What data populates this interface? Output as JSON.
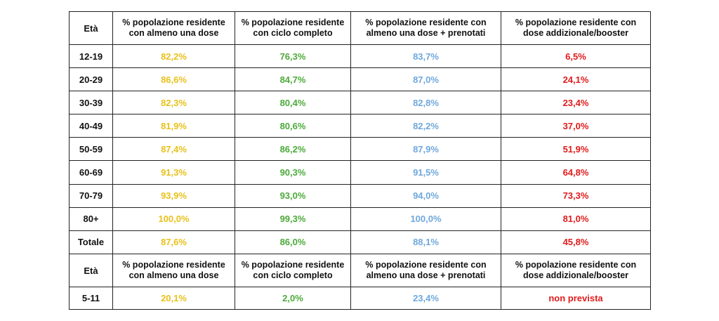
{
  "table_main": {
    "headers": [
      "Età",
      "% popolazione residente con almeno una dose",
      "% popolazione residente con ciclo completo",
      "% popolazione residente con almeno una dose + prenotati",
      "% popolazione residente con dose addizionale/booster"
    ],
    "rows": [
      {
        "age": "12-19",
        "values": [
          "82,2%",
          "76,3%",
          "83,7%",
          "6,5%"
        ]
      },
      {
        "age": "20-29",
        "values": [
          "86,6%",
          "84,7%",
          "87,0%",
          "24,1%"
        ]
      },
      {
        "age": "30-39",
        "values": [
          "82,3%",
          "80,4%",
          "82,8%",
          "23,4%"
        ]
      },
      {
        "age": "40-49",
        "values": [
          "81,9%",
          "80,6%",
          "82,2%",
          "37,0%"
        ]
      },
      {
        "age": "50-59",
        "values": [
          "87,4%",
          "86,2%",
          "87,9%",
          "51,9%"
        ]
      },
      {
        "age": "60-69",
        "values": [
          "91,3%",
          "90,3%",
          "91,5%",
          "64,8%"
        ]
      },
      {
        "age": "70-79",
        "values": [
          "93,9%",
          "93,0%",
          "94,0%",
          "73,3%"
        ]
      },
      {
        "age": "80+",
        "values": [
          "100,0%",
          "99,3%",
          "100,0%",
          "81,0%"
        ]
      },
      {
        "age": "Totale",
        "values": [
          "87,6%",
          "86,0%",
          "88,1%",
          "45,8%"
        ]
      }
    ]
  },
  "table_children": {
    "headers": [
      "Età",
      "% popolazione residente con almeno una dose",
      "% popolazione residente con ciclo completo",
      "% popolazione residente con almeno una dose + prenotati",
      "% popolazione residente con dose addizionale/booster"
    ],
    "rows": [
      {
        "age": "5-11",
        "values": [
          "20,1%",
          "2,0%",
          "23,4%",
          "non prevista"
        ]
      }
    ]
  },
  "colors": {
    "almeno_una_dose": "#e8c11a",
    "ciclo_completo": "#4caa3a",
    "dose_prenotati": "#6fa8dc",
    "booster": "#e01b1b"
  }
}
